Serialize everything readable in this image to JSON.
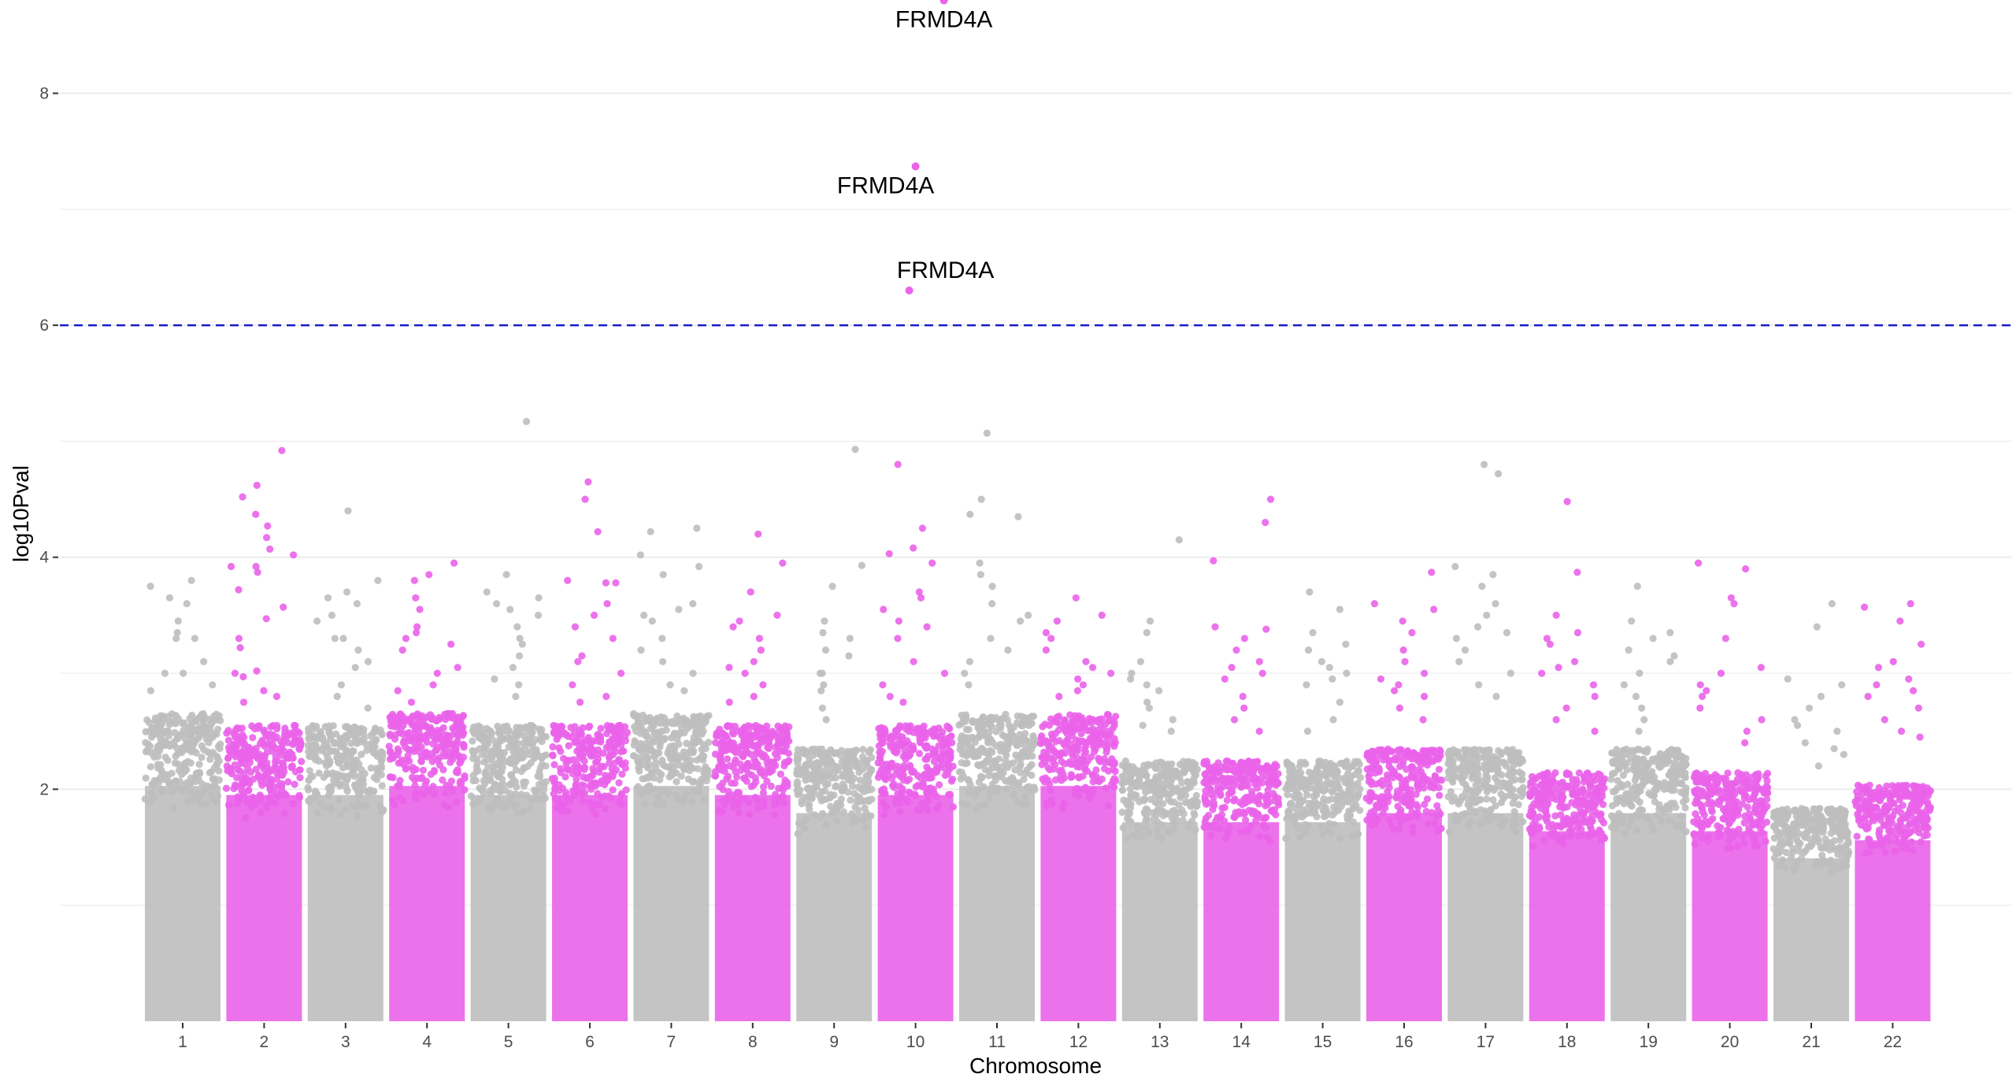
{
  "chart_data": {
    "type": "scatter",
    "subtype": "manhattan",
    "title": "",
    "xlabel": "Chromosome",
    "ylabel": "log10Pval",
    "x_tick_labels": [
      "1",
      "2",
      "3",
      "4",
      "5",
      "6",
      "7",
      "8",
      "9",
      "10",
      "11",
      "12",
      "13",
      "14",
      "15",
      "16",
      "17",
      "18",
      "19",
      "20",
      "21",
      "22"
    ],
    "y_ticks": [
      2,
      4,
      6,
      8
    ],
    "ylim": [
      0,
      8.75
    ],
    "grid": true,
    "legend": "none",
    "threshold": {
      "value": 6,
      "color": "#1a1aca",
      "style": "dashed"
    },
    "colors": {
      "odd": "#bebebe",
      "even": "#ea63ea"
    },
    "chromosomes": [
      {
        "label": "1",
        "bulk_top": 2.6,
        "max": 3.8,
        "outliers": [
          3.8,
          3.75,
          3.65,
          3.6,
          3.45,
          3.35,
          3.3,
          3.3,
          3.1,
          3.0,
          3.0,
          2.9,
          2.85
        ]
      },
      {
        "label": "2",
        "bulk_top": 2.5,
        "max": 4.92,
        "outliers": [
          4.92,
          4.62,
          4.52,
          4.37,
          4.27,
          4.17,
          4.07,
          4.02,
          3.92,
          3.92,
          3.87,
          3.72,
          3.57,
          3.47,
          3.3,
          3.22,
          3.02,
          3.0,
          2.97,
          2.85,
          2.8,
          2.75
        ]
      },
      {
        "label": "3",
        "bulk_top": 2.5,
        "max": 4.4,
        "outliers": [
          4.4,
          3.8,
          3.7,
          3.65,
          3.6,
          3.5,
          3.45,
          3.3,
          3.3,
          3.2,
          3.1,
          3.05,
          2.9,
          2.8,
          2.7
        ]
      },
      {
        "label": "4",
        "bulk_top": 2.6,
        "max": 3.95,
        "outliers": [
          3.95,
          3.85,
          3.8,
          3.65,
          3.55,
          3.4,
          3.35,
          3.3,
          3.25,
          3.2,
          3.05,
          3.0,
          2.9,
          2.85,
          2.75
        ]
      },
      {
        "label": "5",
        "bulk_top": 2.5,
        "max": 5.17,
        "outliers": [
          5.17,
          3.85,
          3.7,
          3.65,
          3.6,
          3.55,
          3.5,
          3.4,
          3.3,
          3.25,
          3.15,
          3.05,
          2.95,
          2.9,
          2.8
        ]
      },
      {
        "label": "6",
        "bulk_top": 2.5,
        "max": 4.65,
        "outliers": [
          4.65,
          4.5,
          4.22,
          3.8,
          3.78,
          3.78,
          3.6,
          3.5,
          3.4,
          3.3,
          3.15,
          3.1,
          3.0,
          2.9,
          2.8,
          2.75
        ]
      },
      {
        "label": "7",
        "bulk_top": 2.6,
        "max": 4.25,
        "outliers": [
          4.25,
          4.22,
          4.02,
          3.92,
          3.85,
          3.6,
          3.55,
          3.5,
          3.45,
          3.3,
          3.2,
          3.1,
          3.0,
          2.9,
          2.85
        ]
      },
      {
        "label": "8",
        "bulk_top": 2.5,
        "max": 4.2,
        "outliers": [
          4.2,
          3.95,
          3.7,
          3.5,
          3.45,
          3.4,
          3.3,
          3.2,
          3.1,
          3.05,
          3.0,
          2.9,
          2.8,
          2.75
        ]
      },
      {
        "label": "9",
        "bulk_top": 2.3,
        "max": 4.93,
        "outliers": [
          4.93,
          3.93,
          3.75,
          3.45,
          3.35,
          3.3,
          3.2,
          3.15,
          3.0,
          3.0,
          2.9,
          2.85,
          2.7,
          2.6
        ]
      },
      {
        "label": "10",
        "bulk_top": 2.5,
        "max": 8.8,
        "outliers": [
          4.8,
          4.25,
          4.08,
          4.03,
          3.95,
          3.7,
          3.65,
          3.55,
          3.45,
          3.4,
          3.3,
          3.1,
          3.0,
          2.9,
          2.8,
          2.75
        ]
      },
      {
        "label": "11",
        "bulk_top": 2.6,
        "max": 5.07,
        "outliers": [
          5.07,
          4.5,
          4.37,
          4.35,
          3.95,
          3.85,
          3.75,
          3.6,
          3.5,
          3.45,
          3.3,
          3.2,
          3.1,
          3.0,
          2.9
        ]
      },
      {
        "label": "12",
        "bulk_top": 2.6,
        "max": 3.65,
        "outliers": [
          3.65,
          3.5,
          3.45,
          3.35,
          3.3,
          3.2,
          3.1,
          3.05,
          3.0,
          2.95,
          2.9,
          2.85,
          2.8
        ]
      },
      {
        "label": "13",
        "bulk_top": 2.2,
        "max": 4.15,
        "outliers": [
          4.15,
          3.45,
          3.35,
          3.1,
          3.0,
          2.95,
          2.9,
          2.85,
          2.75,
          2.7,
          2.6,
          2.55,
          2.5
        ]
      },
      {
        "label": "14",
        "bulk_top": 2.2,
        "max": 4.5,
        "outliers": [
          4.5,
          4.3,
          3.97,
          3.4,
          3.38,
          3.3,
          3.2,
          3.1,
          3.05,
          3.0,
          2.95,
          2.8,
          2.7,
          2.6,
          2.5
        ]
      },
      {
        "label": "15",
        "bulk_top": 2.2,
        "max": 3.7,
        "outliers": [
          3.7,
          3.55,
          3.35,
          3.25,
          3.2,
          3.1,
          3.05,
          3.0,
          2.95,
          2.9,
          2.75,
          2.6,
          2.5
        ]
      },
      {
        "label": "16",
        "bulk_top": 2.3,
        "max": 3.87,
        "outliers": [
          3.87,
          3.6,
          3.55,
          3.45,
          3.35,
          3.2,
          3.1,
          3.0,
          2.95,
          2.9,
          2.85,
          2.8,
          2.7,
          2.6
        ]
      },
      {
        "label": "17",
        "bulk_top": 2.3,
        "max": 4.8,
        "outliers": [
          4.8,
          4.72,
          3.92,
          3.85,
          3.75,
          3.6,
          3.5,
          3.4,
          3.35,
          3.3,
          3.2,
          3.1,
          3.0,
          2.9,
          2.8
        ]
      },
      {
        "label": "18",
        "bulk_top": 2.1,
        "max": 4.48,
        "outliers": [
          4.48,
          3.87,
          3.5,
          3.35,
          3.3,
          3.25,
          3.1,
          3.05,
          3.0,
          2.9,
          2.8,
          2.7,
          2.6,
          2.5
        ]
      },
      {
        "label": "19",
        "bulk_top": 2.3,
        "max": 3.75,
        "outliers": [
          3.75,
          3.45,
          3.35,
          3.3,
          3.2,
          3.15,
          3.1,
          3.0,
          2.9,
          2.8,
          2.7,
          2.6,
          2.5
        ]
      },
      {
        "label": "20",
        "bulk_top": 2.1,
        "max": 3.95,
        "outliers": [
          3.95,
          3.9,
          3.65,
          3.6,
          3.3,
          3.05,
          3.0,
          2.9,
          2.85,
          2.8,
          2.7,
          2.6,
          2.5,
          2.4
        ]
      },
      {
        "label": "21",
        "bulk_top": 1.8,
        "max": 3.6,
        "outliers": [
          3.6,
          3.4,
          2.95,
          2.9,
          2.8,
          2.7,
          2.6,
          2.55,
          2.5,
          2.4,
          2.35,
          2.3,
          2.2
        ]
      },
      {
        "label": "22",
        "bulk_top": 2.0,
        "max": 3.6,
        "outliers": [
          3.6,
          3.57,
          3.45,
          3.25,
          3.1,
          3.05,
          2.95,
          2.9,
          2.85,
          2.8,
          2.7,
          2.6,
          2.5,
          2.45
        ]
      }
    ],
    "significant_hits": [
      {
        "chromosome": "10",
        "y": 8.8,
        "label": "FRMD4A"
      },
      {
        "chromosome": "10",
        "y": 7.37,
        "label": "FRMD4A"
      },
      {
        "chromosome": "10",
        "y": 6.3,
        "label": "FRMD4A"
      }
    ]
  }
}
